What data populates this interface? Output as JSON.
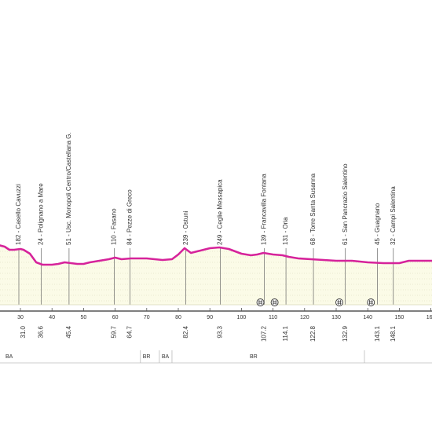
{
  "chart_data": {
    "type": "area",
    "xlim": [
      23,
      165
    ],
    "ylim": [
      0,
      150
    ],
    "series": [
      {
        "values": [
          {
            "x": 23,
            "y": 76
          },
          {
            "x": 25,
            "y": 74
          },
          {
            "x": 26.5,
            "y": 70
          },
          {
            "x": 28,
            "y": 70
          },
          {
            "x": 30,
            "y": 71
          },
          {
            "x": 31,
            "y": 70
          },
          {
            "x": 33,
            "y": 65
          },
          {
            "x": 35,
            "y": 54
          },
          {
            "x": 37,
            "y": 51
          },
          {
            "x": 40,
            "y": 51
          },
          {
            "x": 42,
            "y": 52
          },
          {
            "x": 44,
            "y": 54
          },
          {
            "x": 46,
            "y": 53
          },
          {
            "x": 48,
            "y": 52
          },
          {
            "x": 50,
            "y": 52
          },
          {
            "x": 52,
            "y": 54
          },
          {
            "x": 55,
            "y": 56
          },
          {
            "x": 58,
            "y": 58
          },
          {
            "x": 60,
            "y": 60
          },
          {
            "x": 62,
            "y": 58
          },
          {
            "x": 65,
            "y": 59
          },
          {
            "x": 70,
            "y": 59
          },
          {
            "x": 75,
            "y": 57
          },
          {
            "x": 78,
            "y": 58
          },
          {
            "x": 80,
            "y": 64
          },
          {
            "x": 82,
            "y": 72
          },
          {
            "x": 84,
            "y": 66
          },
          {
            "x": 86,
            "y": 68
          },
          {
            "x": 88,
            "y": 70
          },
          {
            "x": 90,
            "y": 72
          },
          {
            "x": 93,
            "y": 73
          },
          {
            "x": 96,
            "y": 71
          },
          {
            "x": 100,
            "y": 65
          },
          {
            "x": 103,
            "y": 63
          },
          {
            "x": 105,
            "y": 64
          },
          {
            "x": 107,
            "y": 66
          },
          {
            "x": 110,
            "y": 64
          },
          {
            "x": 113,
            "y": 63
          },
          {
            "x": 115,
            "y": 61
          },
          {
            "x": 118,
            "y": 59
          },
          {
            "x": 122,
            "y": 58
          },
          {
            "x": 126,
            "y": 57
          },
          {
            "x": 130,
            "y": 56
          },
          {
            "x": 132,
            "y": 56
          },
          {
            "x": 135,
            "y": 56
          },
          {
            "x": 140,
            "y": 54
          },
          {
            "x": 145,
            "y": 53
          },
          {
            "x": 150,
            "y": 53
          },
          {
            "x": 153,
            "y": 56
          },
          {
            "x": 158,
            "y": 56
          },
          {
            "x": 160,
            "y": 56
          },
          {
            "x": 165,
            "y": 56
          }
        ]
      }
    ],
    "xticks": [
      30,
      40,
      50,
      60,
      70,
      80,
      90,
      100,
      110,
      120,
      130,
      140,
      150,
      160
    ],
    "km_labels": [
      {
        "x": 31.0,
        "text": "31.0"
      },
      {
        "x": 36.6,
        "text": "36.6"
      },
      {
        "x": 45.4,
        "text": "45.4"
      },
      {
        "x": 59.7,
        "text": "59.7"
      },
      {
        "x": 64.7,
        "text": "64.7"
      },
      {
        "x": 82.4,
        "text": "82.4"
      },
      {
        "x": 93.3,
        "text": "93.3"
      },
      {
        "x": 107.2,
        "text": "107.2"
      },
      {
        "x": 114.1,
        "text": "114.1"
      },
      {
        "x": 122.8,
        "text": "122.8"
      },
      {
        "x": 132.9,
        "text": "132.9"
      },
      {
        "x": 143.1,
        "text": "143.1"
      },
      {
        "x": 148.1,
        "text": "148.1"
      }
    ],
    "places": [
      {
        "x": 29.5,
        "text": "182 - Casello Cavuzzi"
      },
      {
        "x": 36.6,
        "text": "24 - Polignano a Mare"
      },
      {
        "x": 45.4,
        "text": "51 - Usc. Monopoli Centro/Castellana G."
      },
      {
        "x": 59.7,
        "text": "110 - Fasano"
      },
      {
        "x": 64.7,
        "text": "84 - Pezze di Greco"
      },
      {
        "x": 82.4,
        "text": "239 - Ostuni"
      },
      {
        "x": 93.3,
        "text": "249 - Ceglie Messapica"
      },
      {
        "x": 107.2,
        "text": "139 - Francavilla Fontana"
      },
      {
        "x": 114.1,
        "text": "131 - Oria"
      },
      {
        "x": 122.8,
        "text": "68 - Torre Santa Susanna"
      },
      {
        "x": 132.9,
        "text": "61 - San Pancrazio Salentino"
      },
      {
        "x": 143.1,
        "text": "45 - Guagnano"
      },
      {
        "x": 148.1,
        "text": "32 - Campi Salentina"
      }
    ],
    "rail_crossings": [
      106,
      110.5,
      131,
      141
    ],
    "provinces": [
      {
        "label": "BA",
        "x_from": 23,
        "x_to": 68
      },
      {
        "label": "BR",
        "x_from": 68,
        "x_to": 74
      },
      {
        "label": "BA",
        "x_from": 74,
        "x_to": 78
      },
      {
        "label": "BR",
        "x_from": 78,
        "x_to": 165
      }
    ],
    "colors": {
      "profile_line": "#d6239b",
      "profile_fill": "#fbfbe7",
      "grid": "#d9d9b8",
      "axis": "#555555",
      "marker_line": "#666666",
      "label": "#333333",
      "province_line": "#bbbbbb"
    }
  }
}
